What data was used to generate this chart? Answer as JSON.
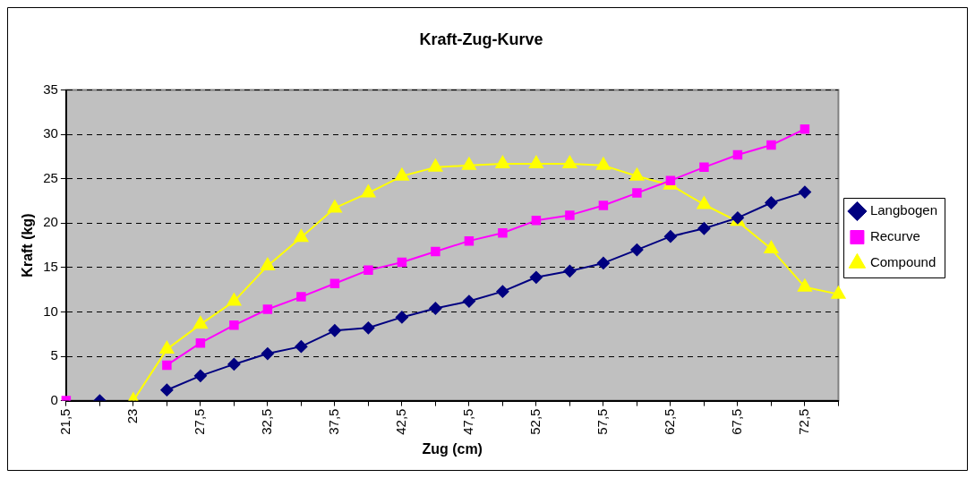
{
  "chart_data": {
    "type": "line",
    "title": "Kraft-Zug-Kurve",
    "xlabel": "Zug (cm)",
    "ylabel": "Kraft (kg)",
    "categories": [
      "21,5",
      null,
      "23",
      null,
      "27,5",
      null,
      "32,5",
      null,
      "37,5",
      null,
      "42,5",
      null,
      "47,5",
      null,
      "52,5",
      null,
      "57,5",
      null,
      "62,5",
      null,
      "67,5",
      null,
      "72,5",
      null
    ],
    "series": [
      {
        "name": "Langbogen",
        "color": "#000080",
        "marker": "diamond",
        "values": [
          null,
          0,
          null,
          1.2,
          2.8,
          4.1,
          5.3,
          6.1,
          7.9,
          8.2,
          9.4,
          10.4,
          11.2,
          12.3,
          13.9,
          14.6,
          15.5,
          17.0,
          18.5,
          19.4,
          20.6,
          22.3,
          23.5,
          null
        ]
      },
      {
        "name": "Recurve",
        "color": "#ff00ff",
        "marker": "square",
        "values": [
          0,
          null,
          null,
          4.0,
          6.5,
          8.5,
          10.3,
          11.7,
          13.2,
          14.7,
          15.6,
          16.8,
          18.0,
          18.9,
          20.3,
          20.9,
          22.0,
          23.4,
          24.8,
          26.3,
          27.7,
          28.8,
          30.6,
          null
        ]
      },
      {
        "name": "Compound",
        "color": "#ffff00",
        "marker": "triangle",
        "values": [
          null,
          null,
          0,
          5.8,
          8.6,
          11.2,
          15.2,
          18.4,
          21.7,
          23.4,
          25.3,
          26.3,
          26.5,
          26.7,
          26.7,
          26.7,
          26.5,
          25.3,
          24.3,
          22.1,
          20.2,
          17.1,
          12.8,
          12.0
        ]
      }
    ],
    "ylim": [
      0,
      35
    ],
    "yticks": [
      0,
      5,
      10,
      15,
      20,
      25,
      30,
      35
    ],
    "grid": "y",
    "legend": "right",
    "line_style": "solid"
  }
}
